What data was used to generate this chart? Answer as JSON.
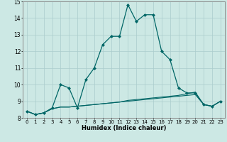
{
  "xlabel": "Humidex (Indice chaleur)",
  "bg_color": "#cce8e4",
  "grid_color": "#aacccc",
  "line_color": "#006666",
  "xlim": [
    -0.5,
    23.5
  ],
  "ylim": [
    8,
    15
  ],
  "xticks": [
    0,
    1,
    2,
    3,
    4,
    5,
    6,
    7,
    8,
    9,
    10,
    11,
    12,
    13,
    14,
    15,
    16,
    17,
    18,
    19,
    20,
    21,
    22,
    23
  ],
  "yticks": [
    8,
    9,
    10,
    11,
    12,
    13,
    14,
    15
  ],
  "line1_x": [
    0,
    1,
    2,
    3,
    4,
    5,
    6,
    7,
    8,
    9,
    10,
    11,
    12,
    13,
    14,
    15,
    16,
    17,
    18,
    19,
    20,
    21,
    22,
    23
  ],
  "line1_y": [
    8.4,
    8.2,
    8.3,
    8.6,
    10.0,
    9.8,
    8.6,
    10.3,
    11.0,
    12.4,
    12.9,
    12.9,
    14.8,
    13.8,
    14.2,
    14.2,
    12.0,
    11.5,
    9.8,
    9.5,
    9.5,
    8.8,
    8.7,
    9.0
  ],
  "line2_x": [
    0,
    1,
    2,
    3,
    4,
    5,
    6,
    7,
    8,
    9,
    10,
    11,
    12,
    13,
    14,
    15,
    16,
    17,
    18,
    19,
    20,
    21,
    22,
    23
  ],
  "line2_y": [
    8.4,
    8.2,
    8.3,
    8.55,
    8.65,
    8.65,
    8.7,
    8.75,
    8.8,
    8.85,
    8.9,
    8.95,
    9.0,
    9.05,
    9.1,
    9.15,
    9.2,
    9.25,
    9.3,
    9.35,
    9.4,
    8.8,
    8.7,
    9.0
  ],
  "line3_x": [
    0,
    1,
    2,
    3,
    4,
    5,
    6,
    7,
    8,
    9,
    10,
    11,
    12,
    13,
    14,
    15,
    16,
    17,
    18,
    19,
    20,
    21,
    22,
    23
  ],
  "line3_y": [
    8.4,
    8.2,
    8.3,
    8.55,
    8.65,
    8.65,
    8.7,
    8.75,
    8.8,
    8.85,
    8.9,
    8.95,
    9.05,
    9.1,
    9.15,
    9.2,
    9.25,
    9.3,
    9.35,
    9.45,
    9.55,
    8.8,
    8.7,
    9.0
  ]
}
